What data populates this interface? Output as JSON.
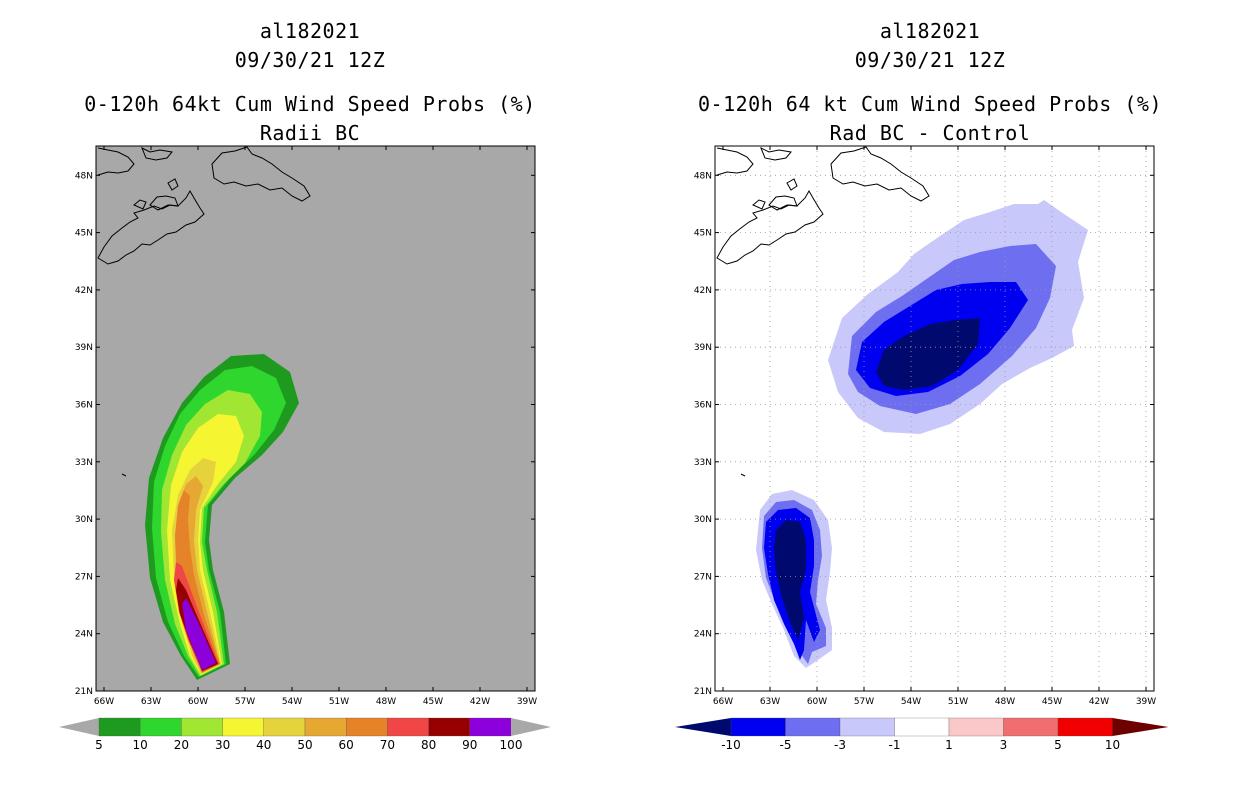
{
  "left_panel": {
    "storm_id": "al182021",
    "datetime": "09/30/21 12Z",
    "product": "0-120h 64kt Cum Wind Speed Probs (%)",
    "subtitle": "Radii BC",
    "background_color": "#a8a8a8",
    "colorbar": {
      "labels": [
        "5",
        "10",
        "20",
        "30",
        "40",
        "50",
        "60",
        "70",
        "80",
        "90",
        "100"
      ],
      "colors": [
        "#1e9b1e",
        "#2ed62e",
        "#a0e632",
        "#f5f532",
        "#e6d23c",
        "#e6a832",
        "#e68228",
        "#f04646",
        "#960000",
        "#8c00dc"
      ]
    }
  },
  "right_panel": {
    "storm_id": "al182021",
    "datetime": "09/30/21 12Z",
    "product": "0-120h 64 kt Cum Wind Speed Probs (%)",
    "subtitle": "Rad BC - Control",
    "background_color": "#ffffff",
    "colorbar": {
      "labels": [
        "-10",
        "-5",
        "-3",
        "-1",
        "1",
        "3",
        "5",
        "10"
      ],
      "colors": [
        "#000a6e",
        "#0000f0",
        "#6e6ef0",
        "#c8c8fa",
        "#ffffff",
        "#fac8c8",
        "#f06e6e",
        "#f00000",
        "#6e0000"
      ]
    }
  },
  "axes": {
    "x_labels": [
      "66W",
      "63W",
      "60W",
      "57W",
      "54W",
      "51W",
      "48W",
      "45W",
      "42W",
      "39W"
    ],
    "y_labels": [
      "21N",
      "24N",
      "27N",
      "30N",
      "33N",
      "36N",
      "39N",
      "42N",
      "45N",
      "48N"
    ]
  }
}
